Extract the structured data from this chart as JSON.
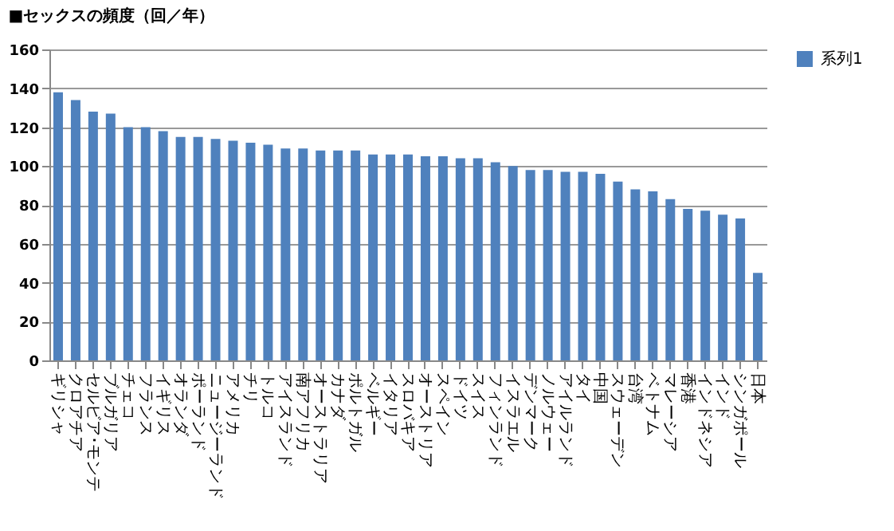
{
  "chart_data": {
    "type": "bar",
    "title": "■セックスの頻度（回／年）",
    "categories": [
      "ギリシャ",
      "クロアチア",
      "セルビア･モンテ",
      "ブルガリア",
      "チェコ",
      "フランス",
      "イギリス",
      "オランダ",
      "ポーランド",
      "ニュージーランド",
      "アメリカ",
      "チリ",
      "トルコ",
      "アイスランド",
      "南アフリカ",
      "オーストラリア",
      "カナダ",
      "ポルトガル",
      "ベルギー",
      "イタリア",
      "スロバキア",
      "オーストリア",
      "スペイン",
      "ドイツ",
      "スイス",
      "フィンランド",
      "イスラエル",
      "デンマーク",
      "ノルウェー",
      "アイルランド",
      "タイ",
      "中国",
      "スウェーデン",
      "台湾",
      "ベトナム",
      "マレーシア",
      "香港",
      "インドネシア",
      "インド",
      "シンガポール",
      "日本"
    ],
    "series": [
      {
        "name": "系列1",
        "color": "#4f81bd",
        "values": [
          138,
          134,
          128,
          127,
          120,
          120,
          118,
          115,
          115,
          114,
          113,
          112,
          111,
          109,
          109,
          108,
          108,
          108,
          106,
          106,
          106,
          105,
          105,
          104,
          104,
          102,
          100,
          98,
          98,
          97,
          97,
          96,
          92,
          88,
          87,
          83,
          78,
          77,
          75,
          73,
          45
        ]
      }
    ],
    "ylim": [
      0,
      160
    ],
    "yticks": [
      0,
      20,
      40,
      60,
      80,
      100,
      120,
      140,
      160
    ],
    "grid": "y",
    "legend": "right"
  }
}
